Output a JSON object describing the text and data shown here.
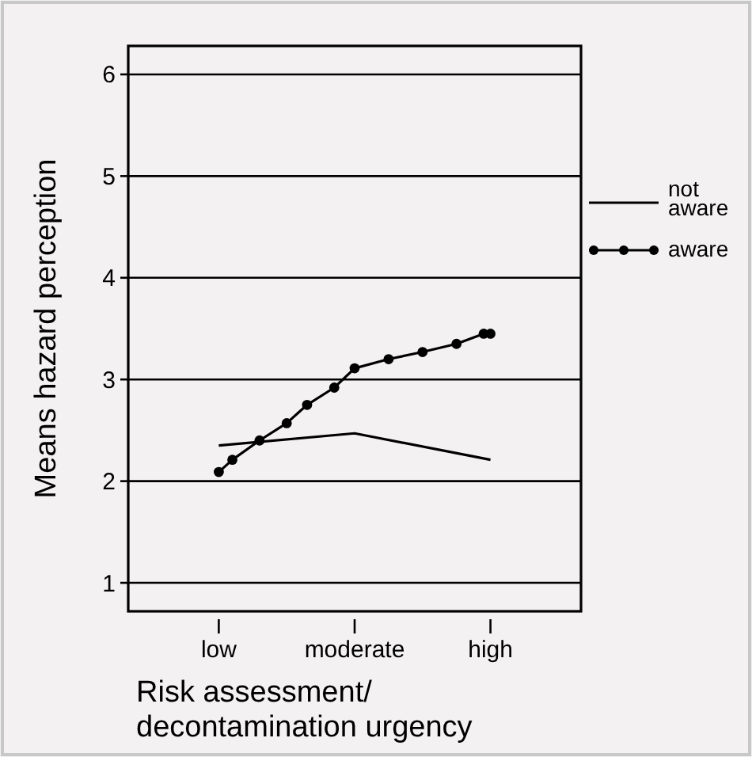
{
  "chart_data": {
    "type": "line",
    "xlabel": "Risk assessment/\ndecontamination urgency",
    "ylabel": "Means hazard perception",
    "categories": [
      "low",
      null,
      null,
      null,
      null,
      null,
      null,
      null,
      null,
      null,
      null,
      null,
      null,
      null,
      null,
      null,
      null,
      null,
      null,
      null,
      "moderate",
      null,
      null,
      null,
      null,
      null,
      null,
      null,
      null,
      null,
      null,
      null,
      null,
      null,
      null,
      null,
      null,
      null,
      null,
      null,
      "high"
    ],
    "ylim": [
      0.72,
      6.28
    ],
    "yticks": [
      1,
      2,
      3,
      4,
      5,
      6
    ],
    "grid": "y",
    "legend": "right",
    "line_style": "solid",
    "series": [
      {
        "name": "not aware",
        "color": "#000000",
        "marker": "none",
        "x": [
          "low",
          "moderate",
          "high"
        ],
        "values": [
          2.35,
          2.47,
          2.21
        ]
      },
      {
        "name": "aware",
        "color": "#000000",
        "marker": "circle",
        "values": [
          2.09,
          null,
          2.21,
          null,
          null,
          null,
          2.4,
          null,
          null,
          null,
          2.57,
          null,
          null,
          2.75,
          null,
          null,
          null,
          2.92,
          null,
          null,
          3.11,
          null,
          null,
          null,
          null,
          3.2,
          null,
          null,
          null,
          null,
          3.27,
          null,
          null,
          null,
          null,
          3.35,
          null,
          null,
          null,
          3.45,
          3.45
        ]
      }
    ]
  }
}
